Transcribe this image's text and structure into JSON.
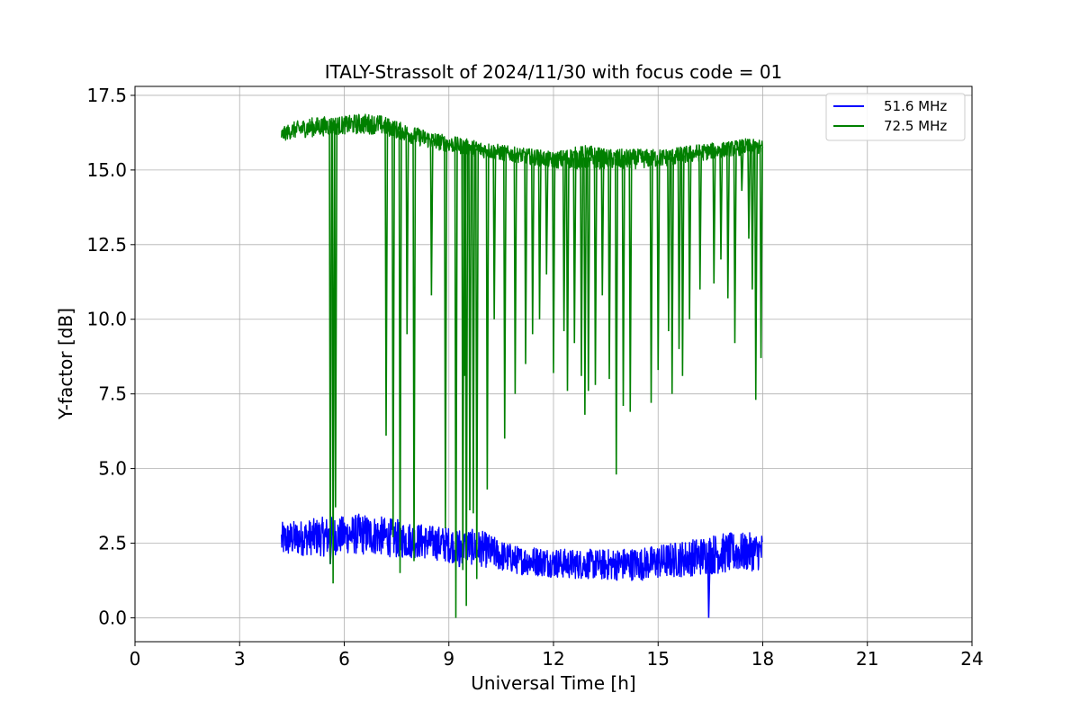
{
  "chart_data": {
    "type": "line",
    "title": "ITALY-Strassolt of 2024/11/30 with focus code = 01",
    "xlabel": "Universal Time [h]",
    "ylabel": "Y-factor [dB]",
    "xlim": [
      0,
      24
    ],
    "ylim": [
      -0.8,
      17.8
    ],
    "xticks": [
      0,
      3,
      6,
      9,
      12,
      15,
      18,
      21,
      24
    ],
    "xtick_labels": [
      "0",
      "3",
      "6",
      "9",
      "12",
      "15",
      "18",
      "21",
      "24"
    ],
    "yticks": [
      0,
      2.5,
      5,
      7.5,
      10,
      12.5,
      15,
      17.5
    ],
    "ytick_labels": [
      "0.0",
      "2.5",
      "5.0",
      "7.5",
      "10.0",
      "12.5",
      "15.0",
      "17.5"
    ],
    "grid": true,
    "legend_position": "top-right",
    "series": [
      {
        "name": "51.6 MHz",
        "color": "#0000ff",
        "band": [
          [
            4.2,
            2.0,
            3.2
          ],
          [
            4.5,
            2.05,
            3.25
          ],
          [
            5.0,
            2.1,
            3.3
          ],
          [
            5.5,
            2.05,
            3.4
          ],
          [
            6.0,
            2.15,
            3.4
          ],
          [
            6.5,
            2.1,
            3.5
          ],
          [
            7.0,
            2.1,
            3.4
          ],
          [
            7.5,
            2.0,
            3.3
          ],
          [
            8.0,
            2.0,
            3.2
          ],
          [
            8.5,
            1.95,
            3.1
          ],
          [
            9.0,
            1.85,
            3.05
          ],
          [
            9.5,
            1.8,
            3.0
          ],
          [
            10.0,
            1.7,
            2.9
          ],
          [
            10.5,
            1.55,
            2.6
          ],
          [
            11.0,
            1.45,
            2.4
          ],
          [
            11.5,
            1.4,
            2.4
          ],
          [
            12.0,
            1.35,
            2.35
          ],
          [
            12.5,
            1.3,
            2.3
          ],
          [
            13.0,
            1.3,
            2.3
          ],
          [
            13.5,
            1.25,
            2.3
          ],
          [
            14.0,
            1.25,
            2.35
          ],
          [
            14.5,
            1.25,
            2.35
          ],
          [
            15.0,
            1.3,
            2.45
          ],
          [
            15.5,
            1.35,
            2.55
          ],
          [
            16.0,
            1.4,
            2.65
          ],
          [
            16.5,
            1.45,
            2.8
          ],
          [
            17.0,
            1.5,
            2.85
          ],
          [
            17.5,
            1.55,
            2.85
          ],
          [
            18.0,
            1.6,
            2.85
          ]
        ],
        "dips": [
          [
            5.6,
            1.8
          ],
          [
            9.3,
            1.7
          ],
          [
            16.45,
            0.0
          ]
        ]
      },
      {
        "name": "72.5 MHz",
        "color": "#008000",
        "band": [
          [
            4.2,
            15.95,
            16.4
          ],
          [
            4.5,
            16.05,
            16.6
          ],
          [
            5.0,
            16.1,
            16.75
          ],
          [
            5.5,
            16.15,
            16.8
          ],
          [
            6.0,
            16.2,
            16.8
          ],
          [
            6.5,
            16.2,
            16.9
          ],
          [
            7.0,
            16.2,
            16.85
          ],
          [
            7.5,
            16.05,
            16.65
          ],
          [
            8.0,
            15.85,
            16.45
          ],
          [
            8.5,
            15.7,
            16.3
          ],
          [
            9.0,
            15.6,
            16.15
          ],
          [
            9.5,
            15.5,
            16.05
          ],
          [
            10.0,
            15.4,
            15.95
          ],
          [
            10.5,
            15.3,
            15.85
          ],
          [
            11.0,
            15.25,
            15.75
          ],
          [
            11.5,
            15.15,
            15.7
          ],
          [
            12.0,
            15.05,
            15.6
          ],
          [
            12.5,
            15.05,
            15.75
          ],
          [
            13.0,
            15.0,
            15.85
          ],
          [
            13.5,
            15.05,
            15.7
          ],
          [
            14.0,
            15.0,
            15.7
          ],
          [
            14.5,
            15.05,
            15.7
          ],
          [
            15.0,
            15.1,
            15.7
          ],
          [
            15.5,
            15.15,
            15.75
          ],
          [
            16.0,
            15.25,
            15.85
          ],
          [
            16.5,
            15.35,
            15.9
          ],
          [
            17.0,
            15.45,
            15.95
          ],
          [
            17.5,
            15.5,
            16.05
          ],
          [
            18.0,
            15.5,
            16.0
          ]
        ],
        "dips": [
          [
            5.6,
            1.8
          ],
          [
            5.68,
            1.15
          ],
          [
            5.75,
            3.7
          ],
          [
            7.2,
            6.1
          ],
          [
            7.4,
            2.7
          ],
          [
            7.6,
            1.5
          ],
          [
            7.8,
            9.5
          ],
          [
            8.0,
            1.9
          ],
          [
            8.5,
            10.8
          ],
          [
            8.9,
            3.0
          ],
          [
            9.2,
            0.0
          ],
          [
            9.4,
            1.6
          ],
          [
            9.45,
            8.1
          ],
          [
            9.5,
            0.4
          ],
          [
            9.6,
            3.6
          ],
          [
            9.7,
            3.5
          ],
          [
            9.8,
            1.3
          ],
          [
            10.1,
            4.3
          ],
          [
            10.3,
            10.0
          ],
          [
            10.6,
            6.0
          ],
          [
            10.9,
            7.5
          ],
          [
            11.2,
            8.5
          ],
          [
            11.4,
            9.5
          ],
          [
            11.6,
            10.0
          ],
          [
            11.8,
            11.5
          ],
          [
            12.0,
            8.2
          ],
          [
            12.3,
            9.6
          ],
          [
            12.4,
            7.6
          ],
          [
            12.6,
            9.2
          ],
          [
            12.8,
            8.1
          ],
          [
            12.9,
            6.8
          ],
          [
            13.0,
            7.6
          ],
          [
            13.2,
            7.8
          ],
          [
            13.4,
            10.8
          ],
          [
            13.6,
            8.0
          ],
          [
            13.8,
            4.8
          ],
          [
            14.0,
            7.1
          ],
          [
            14.2,
            6.9
          ],
          [
            14.8,
            7.2
          ],
          [
            15.0,
            8.3
          ],
          [
            15.3,
            9.6
          ],
          [
            15.4,
            7.5
          ],
          [
            15.6,
            9.0
          ],
          [
            15.7,
            8.1
          ],
          [
            15.9,
            10.0
          ],
          [
            16.2,
            11.0
          ],
          [
            16.6,
            11.2
          ],
          [
            16.8,
            12.0
          ],
          [
            17.0,
            10.7
          ],
          [
            17.2,
            9.2
          ],
          [
            17.4,
            14.3
          ],
          [
            17.6,
            12.7
          ],
          [
            17.7,
            11.0
          ],
          [
            17.8,
            7.3
          ],
          [
            17.95,
            8.7
          ]
        ]
      }
    ]
  }
}
